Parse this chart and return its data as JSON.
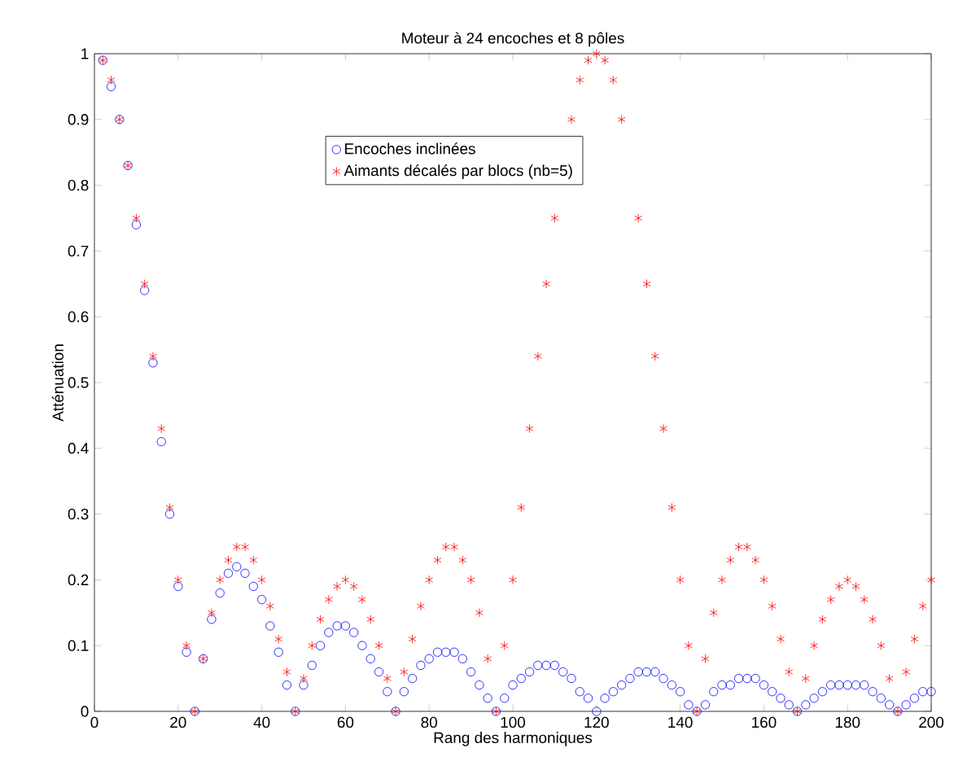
{
  "chart_data": {
    "type": "scatter",
    "title": "Moteur à 24 encoches et 8 pôles",
    "xlabel": "Rang des harmoniques",
    "ylabel": "Atténuation",
    "x": [
      2,
      4,
      6,
      8,
      10,
      12,
      14,
      16,
      18,
      20,
      22,
      24,
      26,
      28,
      30,
      32,
      34,
      36,
      38,
      40,
      42,
      44,
      46,
      48,
      50,
      52,
      54,
      56,
      58,
      60,
      62,
      64,
      66,
      68,
      70,
      72,
      74,
      76,
      78,
      80,
      82,
      84,
      86,
      88,
      90,
      92,
      94,
      96,
      98,
      100,
      102,
      104,
      106,
      108,
      110,
      112,
      114,
      116,
      118,
      120,
      122,
      124,
      126,
      128,
      130,
      132,
      134,
      136,
      138,
      140,
      142,
      144,
      146,
      148,
      150,
      152,
      154,
      156,
      158,
      160,
      162,
      164,
      166,
      168,
      170,
      172,
      174,
      176,
      178,
      180,
      182,
      184,
      186,
      188,
      190,
      192,
      194,
      196,
      198,
      200
    ],
    "series": [
      {
        "name": "Encoches inclinées",
        "color": "#0000ff",
        "marker": "circle",
        "values": [
          0.99,
          0.95,
          0.9,
          0.83,
          0.74,
          0.64,
          0.53,
          0.41,
          0.3,
          0.19,
          0.09,
          0,
          0.08,
          0.14,
          0.18,
          0.21,
          0.22,
          0.21,
          0.19,
          0.17,
          0.13,
          0.09,
          0.04,
          0,
          0.04,
          0.07,
          0.1,
          0.12,
          0.13,
          0.13,
          0.12,
          0.1,
          0.08,
          0.06,
          0.03,
          0,
          0.03,
          0.05,
          0.07,
          0.08,
          0.09,
          0.09,
          0.09,
          0.08,
          0.06,
          0.04,
          0.02,
          0,
          0.02,
          0.04,
          0.05,
          0.06,
          0.07,
          0.07,
          0.07,
          0.06,
          0.05,
          0.03,
          0.02,
          0,
          0.02,
          0.03,
          0.04,
          0.05,
          0.06,
          0.06,
          0.06,
          0.05,
          0.04,
          0.03,
          0.01,
          0,
          0.01,
          0.03,
          0.04,
          0.04,
          0.05,
          0.05,
          0.05,
          0.04,
          0.03,
          0.02,
          0.01,
          0,
          0.01,
          0.02,
          0.03,
          0.04,
          0.04,
          0.04,
          0.04,
          0.04,
          0.03,
          0.02,
          0.01,
          0,
          0.01,
          0.02,
          0.03,
          0.03
        ]
      },
      {
        "name": "Aimants décalés par blocs (nb=5)",
        "color": "#ff0000",
        "marker": "cross",
        "values": [
          0.99,
          0.96,
          0.9,
          0.83,
          0.75,
          0.65,
          0.54,
          0.43,
          0.31,
          0.2,
          0.1,
          0,
          0.08,
          0.15,
          0.2,
          0.23,
          0.25,
          0.25,
          0.23,
          0.2,
          0.16,
          0.11,
          0.06,
          0,
          0.05,
          0.1,
          0.14,
          0.17,
          0.19,
          0.2,
          0.19,
          0.17,
          0.14,
          0.1,
          0.05,
          0,
          0.06,
          0.11,
          0.16,
          0.2,
          0.23,
          0.25,
          0.25,
          0.23,
          0.2,
          0.15,
          0.08,
          0,
          0.1,
          0.2,
          0.31,
          0.43,
          0.54,
          0.65,
          0.75,
          null,
          0.9,
          0.96,
          0.99,
          1,
          0.99,
          0.96,
          0.9,
          null,
          0.75,
          0.65,
          0.54,
          0.43,
          0.31,
          0.2,
          0.1,
          0,
          0.08,
          0.15,
          0.2,
          0.23,
          0.25,
          0.25,
          0.23,
          0.2,
          0.16,
          0.11,
          0.06,
          0,
          0.05,
          0.1,
          0.14,
          0.17,
          0.19,
          0.2,
          0.19,
          0.17,
          0.14,
          0.1,
          0.05,
          0,
          0.06,
          0.11,
          0.16,
          0.2
        ]
      }
    ],
    "xlim": [
      0,
      200
    ],
    "ylim": [
      0,
      1
    ],
    "xticks": [
      0,
      20,
      40,
      60,
      80,
      100,
      120,
      140,
      160,
      180,
      200
    ],
    "yticks": [
      0,
      0.1,
      0.2,
      0.3,
      0.4,
      0.5,
      0.6,
      0.7,
      0.8,
      0.9,
      1
    ],
    "grid": false,
    "legend": "top"
  }
}
